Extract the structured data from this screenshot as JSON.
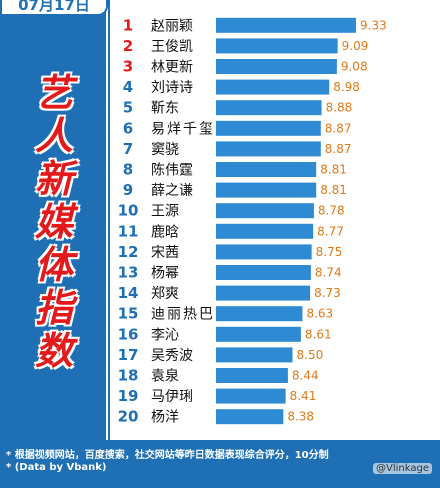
{
  "header": {
    "date": "07月17日"
  },
  "title_chars": [
    "艺",
    "人",
    "新",
    "媒",
    "体",
    "指",
    "数"
  ],
  "colors": {
    "panel_blue": "#1e6fb4",
    "bar_blue": "#2f8ad4",
    "rank_red": "#e3191b",
    "rank_blue": "#1e6fb4",
    "value_color": "#e07a1a"
  },
  "chart_data": {
    "type": "bar",
    "orientation": "horizontal",
    "categories": [
      "赵丽颖",
      "王俊凯",
      "林更新",
      "刘诗诗",
      "靳东",
      "易烊千玺",
      "窦骁",
      "陈伟霆",
      "薛之谦",
      "王源",
      "鹿晗",
      "宋茜",
      "杨幂",
      "郑爽",
      "迪丽热巴",
      "李沁",
      "吴秀波",
      "袁泉",
      "马伊琍",
      "杨洋"
    ],
    "ranks": [
      "1",
      "2",
      "3",
      "4",
      "5",
      "6",
      "7",
      "8",
      "9",
      "10",
      "11",
      "12",
      "13",
      "14",
      "15",
      "16",
      "17",
      "18",
      "19",
      "20"
    ],
    "values": [
      9.33,
      9.09,
      9.08,
      8.98,
      8.88,
      8.87,
      8.87,
      8.81,
      8.81,
      8.78,
      8.77,
      8.75,
      8.74,
      8.73,
      8.63,
      8.61,
      8.5,
      8.44,
      8.41,
      8.38
    ],
    "value_labels": [
      "9.33",
      "9.09",
      "9.08",
      "8.98",
      "8.88",
      "8.87",
      "8.87",
      "8.81",
      "8.81",
      "8.78",
      "8.77",
      "8.75",
      "8.74",
      "8.73",
      "8.63",
      "8.61",
      "8.50",
      "8.44",
      "8.41",
      "8.38"
    ],
    "xlim": [
      7.5,
      9.33
    ]
  },
  "footer": {
    "note": "* 根据视频网站，百度搜索，社交网站等昨日数据表现综合评分，10分制",
    "source": "* (Data by Vbank)",
    "weibo": "@Vlinkage"
  }
}
